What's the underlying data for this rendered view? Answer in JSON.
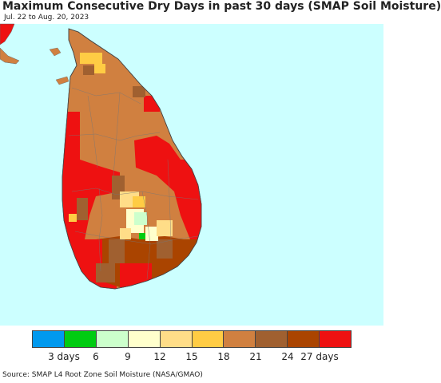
{
  "header": {
    "title": "Maximum Consecutive Dry Days in past 30 days (SMAP Soil Moisture)",
    "date_range": "Jul. 22 to Aug. 20, 2023"
  },
  "map": {
    "region": "Sri Lanka",
    "ocean_color": "#ccffff",
    "land_default_color": "#d08040"
  },
  "legend": {
    "colors": [
      "#0099ee",
      "#00cc11",
      "#ccffcc",
      "#ffffcc",
      "#ffdd88",
      "#ffcc44",
      "#d08040",
      "#a06030",
      "#aa4400",
      "#ee1111"
    ],
    "labels": [
      {
        "text": "3 days",
        "pos": 0.1
      },
      {
        "text": "6",
        "pos": 0.2
      },
      {
        "text": "9",
        "pos": 0.3
      },
      {
        "text": "12",
        "pos": 0.4
      },
      {
        "text": "15",
        "pos": 0.5
      },
      {
        "text": "18",
        "pos": 0.6
      },
      {
        "text": "21",
        "pos": 0.7
      },
      {
        "text": "24",
        "pos": 0.8
      },
      {
        "text": "27 days",
        "pos": 0.9
      }
    ]
  },
  "footer": {
    "source": "Source: SMAP L4 Root Zone Soil Moisture (NASA/GMAO)"
  }
}
